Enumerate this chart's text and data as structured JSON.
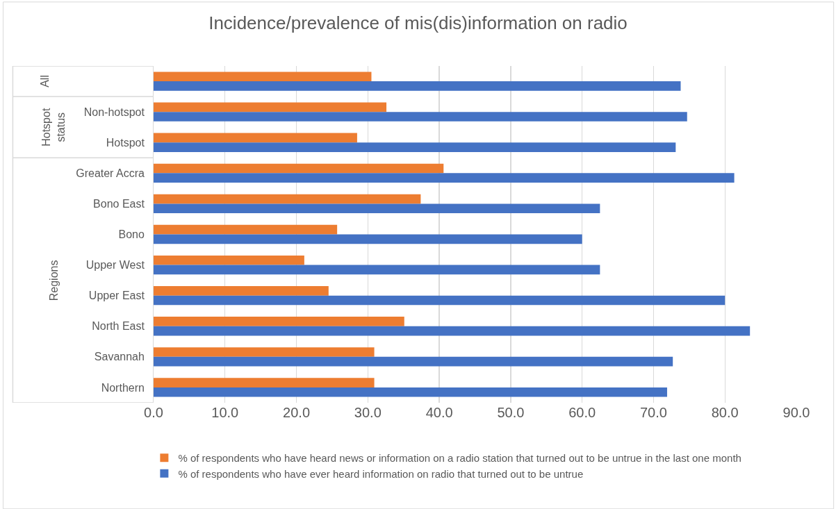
{
  "chart_data": {
    "type": "bar",
    "orientation": "horizontal",
    "title": "Incidence/prevalence of mis(dis)information on radio",
    "categories": [
      null,
      "Non-hotspot",
      "Hotspot",
      "Greater Accra",
      "Bono East",
      "Bono",
      "Upper West",
      "Upper East",
      "North East",
      "Savannah",
      "Northern"
    ],
    "series": [
      {
        "name": "% of respondents who have heard news or information on a radio station that turned out to be untrue in the last one month",
        "color": "#ed7d31",
        "values": [
          30.5,
          32.6,
          28.5,
          40.6,
          37.4,
          25.7,
          21.1,
          24.5,
          35.1,
          30.9,
          30.9
        ]
      },
      {
        "name": "% of respondents who have ever heard information on radio that turned out to be untrue",
        "color": "#4472c4",
        "values": [
          73.8,
          74.7,
          73.1,
          81.3,
          62.5,
          60.0,
          62.5,
          80.0,
          83.5,
          72.7,
          71.9
        ]
      }
    ],
    "annotations": [
      "All",
      "Hotspot status",
      "Regions"
    ],
    "xlim": [
      0,
      90
    ],
    "xticks": [
      {
        "value": 0,
        "label": "0.0"
      },
      {
        "value": 10,
        "label": "10.0"
      },
      {
        "value": 20,
        "label": "20.0"
      },
      {
        "value": 30,
        "label": "30.0"
      },
      {
        "value": 40,
        "label": "40.0"
      },
      {
        "value": 50,
        "label": "50.0"
      },
      {
        "value": 60,
        "label": "60.0"
      },
      {
        "value": 70,
        "label": "70.0"
      },
      {
        "value": 80,
        "label": "80.0"
      },
      {
        "value": 90,
        "label": "90.0"
      }
    ],
    "grid": "x",
    "legend": "bottom"
  }
}
